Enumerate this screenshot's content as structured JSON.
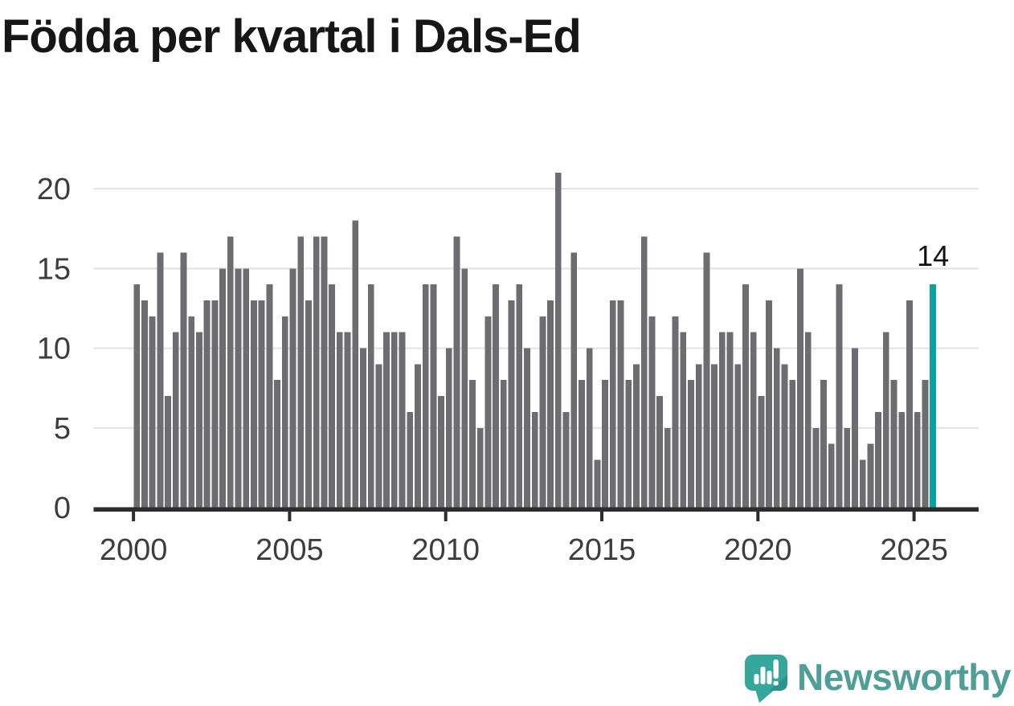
{
  "title": "Födda per kvartal i Dals-Ed",
  "logo": {
    "name": "Newsworthy",
    "icon": "newsworthy-speech-bubble-chart-icon",
    "text_color": "#4f9e97",
    "bubble_color": "#35a79c",
    "bubble_shade_color": "#2c948a"
  },
  "colors": {
    "bar": "#6c6c71",
    "highlight": "#0ca0a1",
    "grid": "#e4e4e4",
    "axis": "#2d2d2d",
    "tick_label": "#3d3d3d",
    "annotation": "#111111",
    "background": "#ffffff"
  },
  "chart_data": {
    "type": "bar",
    "title": "Födda per kvartal i Dals-Ed",
    "xlabel": "",
    "ylabel": "",
    "ylim": [
      0,
      21
    ],
    "grid": "horizontal",
    "legend": "none",
    "y_ticks": [
      0,
      5,
      10,
      15,
      20
    ],
    "x_ticks": [
      2000,
      2005,
      2010,
      2015,
      2020,
      2025
    ],
    "series_name": "Födda per kvartal",
    "frequency": "quarterly",
    "start": "2000-Q1",
    "end": "2025-Q3",
    "highlight": {
      "position": "last",
      "label": "14",
      "color": "#0ca0a1"
    },
    "years": [
      {
        "year": 2000,
        "values": [
          14,
          13,
          12,
          16
        ]
      },
      {
        "year": 2001,
        "values": [
          7,
          11,
          16,
          12
        ]
      },
      {
        "year": 2002,
        "values": [
          11,
          13,
          13,
          15
        ]
      },
      {
        "year": 2003,
        "values": [
          17,
          15,
          15,
          13
        ]
      },
      {
        "year": 2004,
        "values": [
          13,
          14,
          8,
          12
        ]
      },
      {
        "year": 2005,
        "values": [
          15,
          17,
          13,
          17
        ]
      },
      {
        "year": 2006,
        "values": [
          17,
          14,
          11,
          11
        ]
      },
      {
        "year": 2007,
        "values": [
          18,
          10,
          14,
          9
        ]
      },
      {
        "year": 2008,
        "values": [
          11,
          11,
          11,
          6
        ]
      },
      {
        "year": 2009,
        "values": [
          9,
          14,
          14,
          7
        ]
      },
      {
        "year": 2010,
        "values": [
          10,
          17,
          15,
          8
        ]
      },
      {
        "year": 2011,
        "values": [
          5,
          12,
          14,
          8
        ]
      },
      {
        "year": 2012,
        "values": [
          13,
          14,
          10,
          6
        ]
      },
      {
        "year": 2013,
        "values": [
          12,
          13,
          21,
          6
        ]
      },
      {
        "year": 2014,
        "values": [
          16,
          8,
          10,
          3
        ]
      },
      {
        "year": 2015,
        "values": [
          8,
          13,
          13,
          8
        ]
      },
      {
        "year": 2016,
        "values": [
          9,
          17,
          12,
          7
        ]
      },
      {
        "year": 2017,
        "values": [
          5,
          12,
          11,
          8
        ]
      },
      {
        "year": 2018,
        "values": [
          9,
          16,
          9,
          11
        ]
      },
      {
        "year": 2019,
        "values": [
          11,
          9,
          14,
          11
        ]
      },
      {
        "year": 2020,
        "values": [
          7,
          13,
          10,
          9
        ]
      },
      {
        "year": 2021,
        "values": [
          8,
          15,
          11,
          5
        ]
      },
      {
        "year": 2022,
        "values": [
          8,
          4,
          14,
          5
        ]
      },
      {
        "year": 2023,
        "values": [
          10,
          3,
          4,
          6
        ]
      },
      {
        "year": 2024,
        "values": [
          11,
          8,
          6,
          13
        ]
      },
      {
        "year": 2025,
        "values": [
          6,
          8,
          14
        ]
      }
    ]
  }
}
